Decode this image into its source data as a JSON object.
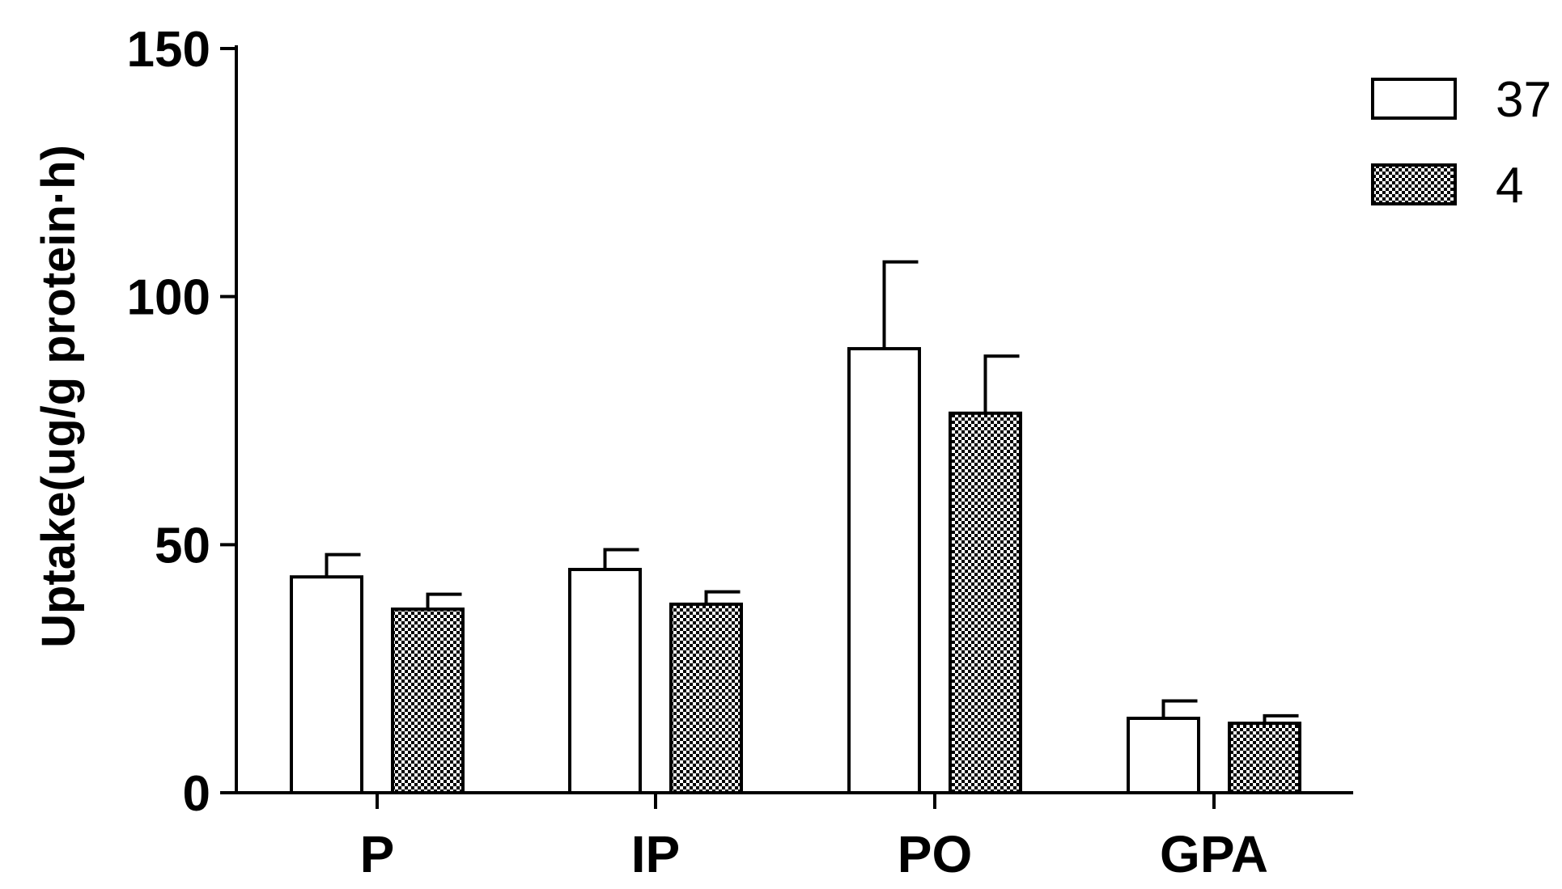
{
  "chart_data": {
    "type": "bar",
    "title": "",
    "xlabel": "",
    "ylabel": "Uptake(ug/g protein·h)",
    "ylim": [
      0,
      150
    ],
    "yticks": [
      0,
      50,
      100,
      150
    ],
    "categories": [
      "P",
      "IP",
      "PO",
      "GPA"
    ],
    "series": [
      {
        "name": "37",
        "fill": "#ffffff",
        "pattern": "none",
        "values": [
          43.5,
          45,
          89.5,
          15
        ],
        "errors": [
          4.5,
          4,
          17.5,
          3.5
        ]
      },
      {
        "name": "4",
        "fill": "#000000",
        "pattern": "checkered",
        "values": [
          37,
          38,
          76.5,
          14
        ],
        "errors": [
          3,
          2.5,
          11.5,
          1.5
        ]
      }
    ],
    "legend": "top-right",
    "grid": false
  }
}
